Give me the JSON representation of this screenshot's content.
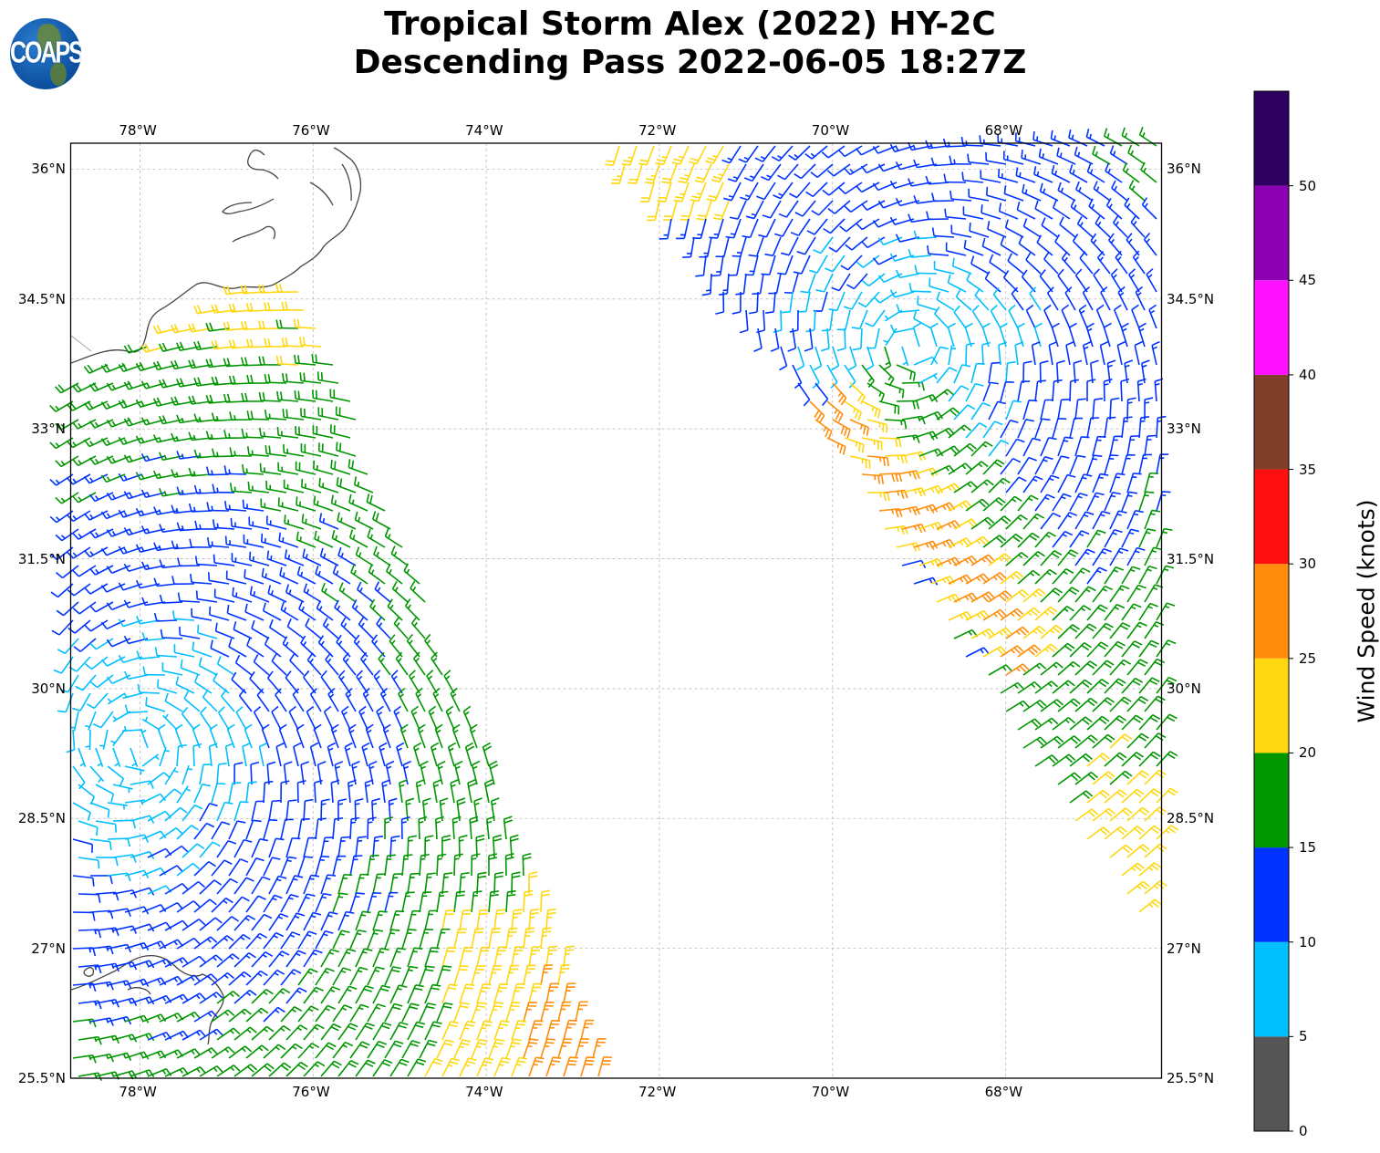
{
  "title": {
    "line1": "Tropical Storm Alex (2022) HY-2C",
    "line2": "Descending Pass 2022-06-05 18:27Z"
  },
  "logo": {
    "text": "COAPS"
  },
  "map": {
    "lon_range": [
      -78.8,
      -66.2
    ],
    "lat_range": [
      25.5,
      36.3
    ],
    "lon_ticks": [
      {
        "value": -78,
        "label": "78°W"
      },
      {
        "value": -76,
        "label": "76°W"
      },
      {
        "value": -74,
        "label": "74°W"
      },
      {
        "value": -72,
        "label": "72°W"
      },
      {
        "value": -70,
        "label": "70°W"
      },
      {
        "value": -68,
        "label": "68°W"
      }
    ],
    "lat_ticks": [
      {
        "value": 36,
        "label": "36°N"
      },
      {
        "value": 34.5,
        "label": "34.5°N"
      },
      {
        "value": 33,
        "label": "33°N"
      },
      {
        "value": 31.5,
        "label": "31.5°N"
      },
      {
        "value": 30,
        "label": "30°N"
      },
      {
        "value": 28.5,
        "label": "28.5°N"
      },
      {
        "value": 27,
        "label": "27°N"
      },
      {
        "value": 25.5,
        "label": "25.5°N"
      }
    ],
    "gridlines": true
  },
  "colorbar": {
    "label": "Wind Speed (knots)",
    "range": [
      0,
      55
    ],
    "ticks": [
      {
        "value": 0,
        "label": "0"
      },
      {
        "value": 5,
        "label": "5"
      },
      {
        "value": 10,
        "label": "10"
      },
      {
        "value": 15,
        "label": "15"
      },
      {
        "value": 20,
        "label": "20"
      },
      {
        "value": 25,
        "label": "25"
      },
      {
        "value": 30,
        "label": "30"
      },
      {
        "value": 35,
        "label": "35"
      },
      {
        "value": 40,
        "label": "40"
      },
      {
        "value": 45,
        "label": "45"
      },
      {
        "value": 50,
        "label": "50"
      }
    ],
    "bins": [
      {
        "min": 0,
        "max": 5,
        "color": "#555555"
      },
      {
        "min": 5,
        "max": 10,
        "color": "#00bfff"
      },
      {
        "min": 10,
        "max": 15,
        "color": "#0033ff"
      },
      {
        "min": 15,
        "max": 20,
        "color": "#009600"
      },
      {
        "min": 20,
        "max": 25,
        "color": "#ffd710"
      },
      {
        "min": 25,
        "max": 30,
        "color": "#ff8c0a"
      },
      {
        "min": 30,
        "max": 35,
        "color": "#ff1010"
      },
      {
        "min": 35,
        "max": 40,
        "color": "#7f3f2a"
      },
      {
        "min": 40,
        "max": 45,
        "color": "#ff10ff"
      },
      {
        "min": 45,
        "max": 50,
        "color": "#8c00b4"
      },
      {
        "min": 50,
        "max": 55,
        "color": "#2e0060"
      }
    ]
  }
}
